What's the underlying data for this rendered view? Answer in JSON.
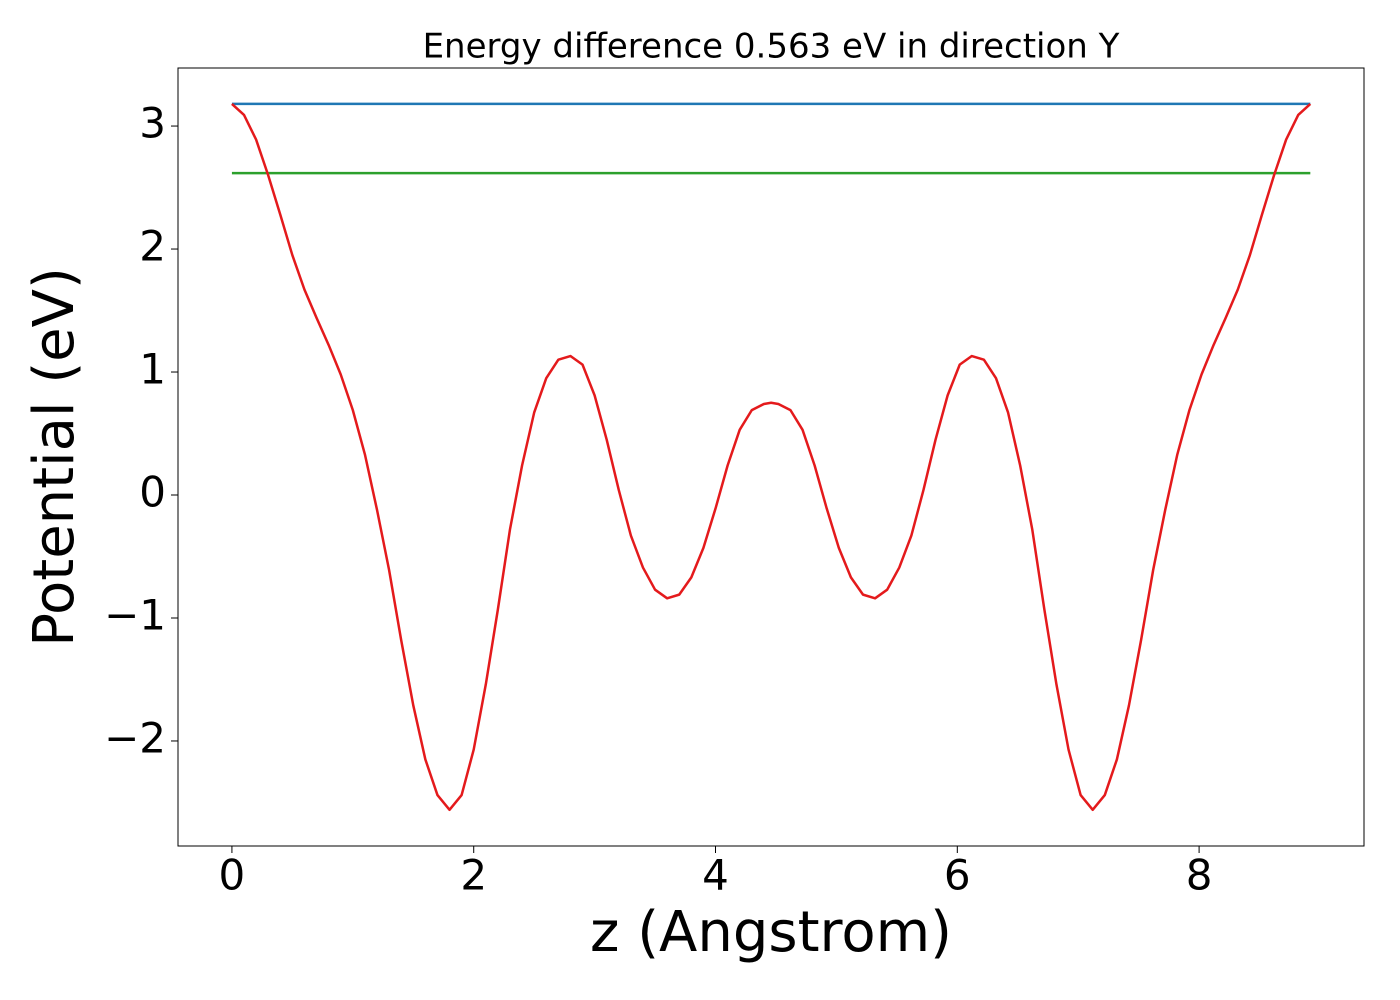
{
  "chart_data": {
    "type": "line",
    "title": "Energy difference 0.563 eV in direction Y",
    "xlabel": "z (Angstrom)",
    "ylabel": "Potential (eV)",
    "xlim": [
      -0.446,
      9.364
    ],
    "ylim": [
      -2.854,
      3.472
    ],
    "xticks": [
      0,
      2,
      4,
      6,
      8
    ],
    "yticks": [
      {
        "value": -2,
        "label": "−2"
      },
      {
        "value": -1,
        "label": "−1"
      },
      0,
      1,
      2,
      3
    ],
    "series": [
      {
        "color": "#1f77b4",
        "x": [
          0,
          8.92
        ],
        "values": [
          3.18,
          3.18
        ]
      },
      {
        "color": "#2ca02c",
        "x": [
          0,
          8.92
        ],
        "values": [
          2.617,
          2.617
        ]
      },
      {
        "color": "#e41a1c",
        "x": [
          0,
          0.1,
          0.2,
          0.3,
          0.4,
          0.5,
          0.6,
          0.7,
          0.8,
          0.9,
          1.0,
          1.1,
          1.2,
          1.3,
          1.4,
          1.5,
          1.6,
          1.7,
          1.8,
          1.9,
          2.0,
          2.1,
          2.2,
          2.3,
          2.4,
          2.5,
          2.6,
          2.7,
          2.8,
          2.9,
          3.0,
          3.1,
          3.2,
          3.3,
          3.4,
          3.5,
          3.6,
          3.7,
          3.8,
          3.9,
          4.0,
          4.1,
          4.2,
          4.3,
          4.4,
          4.46,
          4.52,
          4.62,
          4.72,
          4.82,
          4.92,
          5.02,
          5.12,
          5.22,
          5.32,
          5.42,
          5.52,
          5.62,
          5.72,
          5.82,
          5.92,
          6.02,
          6.12,
          6.22,
          6.32,
          6.42,
          6.52,
          6.62,
          6.72,
          6.82,
          6.92,
          7.02,
          7.12,
          7.22,
          7.32,
          7.42,
          7.52,
          7.62,
          7.72,
          7.82,
          7.92,
          8.02,
          8.12,
          8.22,
          8.32,
          8.42,
          8.52,
          8.62,
          8.72,
          8.82,
          8.92
        ],
        "values": [
          3.18,
          3.09,
          2.89,
          2.6,
          2.28,
          1.95,
          1.67,
          1.44,
          1.22,
          0.98,
          0.69,
          0.33,
          -0.12,
          -0.61,
          -1.18,
          -1.71,
          -2.15,
          -2.44,
          -2.56,
          -2.44,
          -2.07,
          -1.54,
          -0.93,
          -0.28,
          0.24,
          0.67,
          0.95,
          1.1,
          1.13,
          1.06,
          0.81,
          0.45,
          0.04,
          -0.33,
          -0.59,
          -0.77,
          -0.84,
          -0.81,
          -0.67,
          -0.43,
          -0.11,
          0.24,
          0.53,
          0.69,
          0.74,
          0.75,
          0.74,
          0.69,
          0.53,
          0.24,
          -0.11,
          -0.43,
          -0.67,
          -0.81,
          -0.84,
          -0.77,
          -0.59,
          -0.33,
          0.04,
          0.45,
          0.81,
          1.06,
          1.13,
          1.1,
          0.95,
          0.67,
          0.24,
          -0.28,
          -0.93,
          -1.54,
          -2.07,
          -2.44,
          -2.56,
          -2.44,
          -2.15,
          -1.71,
          -1.18,
          -0.61,
          -0.12,
          0.33,
          0.69,
          0.98,
          1.22,
          1.44,
          1.67,
          1.95,
          2.28,
          2.6,
          2.89,
          3.09,
          3.18
        ]
      }
    ]
  }
}
